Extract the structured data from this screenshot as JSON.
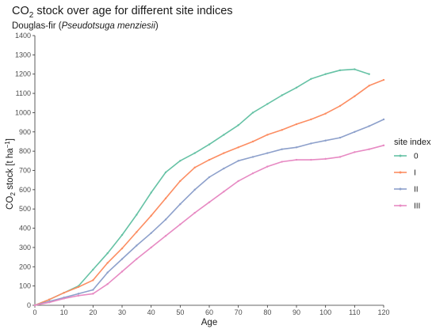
{
  "chart_data": {
    "type": "line",
    "title": {
      "prefix": "CO",
      "sub": "2",
      "suffix": " stock over age for different site indices"
    },
    "subtitle": {
      "prefix": "Douglas-fir (",
      "italic": "Pseudotsuga menziesii",
      "suffix": ")"
    },
    "xlabel": "Age",
    "ylabel": {
      "prefix": "CO",
      "sub": "2",
      "middle": " stock [t ha",
      "sup": "−1",
      "suffix": "]"
    },
    "xlim": [
      0,
      120
    ],
    "ylim": [
      0,
      1400
    ],
    "xticks": [
      0,
      10,
      20,
      30,
      40,
      50,
      60,
      70,
      80,
      90,
      100,
      110,
      120
    ],
    "yticks": [
      0,
      100,
      200,
      300,
      400,
      500,
      600,
      700,
      800,
      900,
      1000,
      1100,
      1200,
      1300,
      1400
    ],
    "grid": false,
    "legend": {
      "title": "site index",
      "position": "right"
    },
    "series": [
      {
        "name": "0",
        "color": "#66c2a5",
        "x": [
          0,
          5,
          10,
          15,
          20,
          25,
          30,
          35,
          40,
          45,
          50,
          55,
          60,
          65,
          70,
          75,
          80,
          85,
          90,
          95,
          100,
          105,
          110,
          115
        ],
        "y": [
          0,
          30,
          65,
          100,
          185,
          270,
          365,
          470,
          585,
          690,
          750,
          790,
          835,
          885,
          935,
          1000,
          1045,
          1090,
          1130,
          1175,
          1200,
          1220,
          1225,
          1200
        ]
      },
      {
        "name": "I",
        "color": "#fc8d62",
        "x": [
          0,
          5,
          10,
          15,
          20,
          25,
          30,
          35,
          40,
          45,
          50,
          55,
          60,
          65,
          70,
          75,
          80,
          85,
          90,
          95,
          100,
          105,
          110,
          115,
          120
        ],
        "y": [
          0,
          30,
          65,
          95,
          130,
          220,
          295,
          380,
          465,
          555,
          645,
          715,
          755,
          790,
          820,
          850,
          885,
          910,
          940,
          965,
          995,
          1035,
          1085,
          1140,
          1170
        ]
      },
      {
        "name": "II",
        "color": "#8da0cb",
        "x": [
          0,
          5,
          10,
          15,
          20,
          25,
          30,
          35,
          40,
          45,
          50,
          55,
          60,
          65,
          70,
          75,
          80,
          85,
          90,
          95,
          100,
          105,
          110,
          115,
          120
        ],
        "y": [
          0,
          20,
          40,
          60,
          80,
          170,
          240,
          310,
          375,
          445,
          525,
          600,
          665,
          710,
          750,
          770,
          790,
          810,
          820,
          840,
          855,
          870,
          900,
          930,
          965
        ]
      },
      {
        "name": "III",
        "color": "#e78ac3",
        "x": [
          0,
          5,
          10,
          15,
          20,
          25,
          30,
          35,
          40,
          45,
          50,
          55,
          60,
          65,
          70,
          75,
          80,
          85,
          90,
          95,
          100,
          105,
          110,
          115,
          120
        ],
        "y": [
          0,
          15,
          35,
          50,
          60,
          110,
          175,
          240,
          300,
          360,
          420,
          480,
          535,
          590,
          645,
          685,
          720,
          745,
          755,
          755,
          760,
          770,
          795,
          810,
          830
        ]
      }
    ]
  }
}
